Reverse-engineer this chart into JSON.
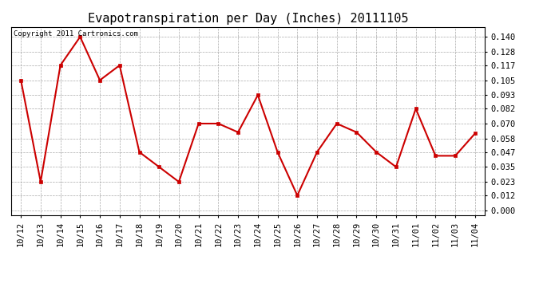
{
  "title": "Evapotranspiration per Day (Inches) 20111105",
  "copyright_text": "Copyright 2011 Cartronics.com",
  "x_labels": [
    "10/12",
    "10/13",
    "10/14",
    "10/15",
    "10/16",
    "10/17",
    "10/18",
    "10/19",
    "10/20",
    "10/21",
    "10/22",
    "10/23",
    "10/24",
    "10/25",
    "10/26",
    "10/27",
    "10/28",
    "10/29",
    "10/30",
    "10/31",
    "11/01",
    "11/02",
    "11/03",
    "11/04"
  ],
  "y_values": [
    0.105,
    0.023,
    0.117,
    0.14,
    0.105,
    0.117,
    0.047,
    0.035,
    0.023,
    0.07,
    0.07,
    0.063,
    0.093,
    0.047,
    0.012,
    0.047,
    0.07,
    0.063,
    0.047,
    0.035,
    0.082,
    0.044,
    0.044,
    0.062
  ],
  "y_ticks": [
    0.0,
    0.012,
    0.023,
    0.035,
    0.047,
    0.058,
    0.07,
    0.082,
    0.093,
    0.105,
    0.117,
    0.128,
    0.14
  ],
  "line_color": "#cc0000",
  "marker": "s",
  "marker_size": 2.5,
  "bg_color": "#ffffff",
  "grid_color": "#aaaaaa",
  "ylim": [
    -0.004,
    0.148
  ],
  "title_fontsize": 11,
  "tick_fontsize": 7.5,
  "copyright_fontsize": 6.5
}
